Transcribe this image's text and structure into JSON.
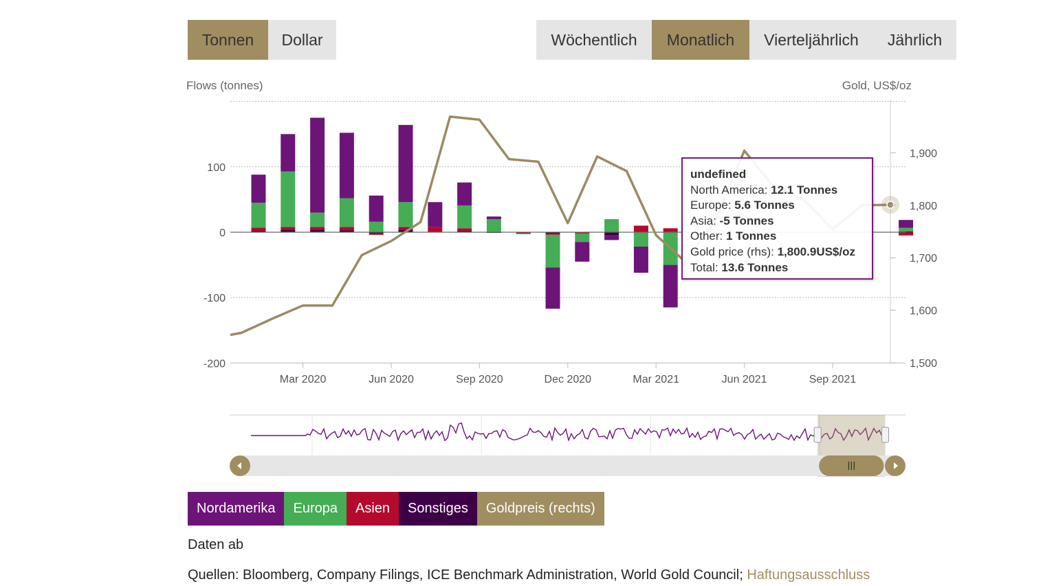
{
  "unit_toggle": [
    {
      "label": "Tonnen",
      "active": true
    },
    {
      "label": "Dollar",
      "active": false
    }
  ],
  "period_toggle": [
    {
      "label": "Wöchentlich",
      "active": false
    },
    {
      "label": "Monatlich",
      "active": true
    },
    {
      "label": "Vierteljährlich",
      "active": false
    },
    {
      "label": "Jährlich",
      "active": false
    }
  ],
  "colors": {
    "accent": "#a08e61",
    "north_america": "#6d1479",
    "europe": "#44ad55",
    "asia": "#b40a2c",
    "other": "#3d0047",
    "gold": "#9b8b64"
  },
  "chart_data": {
    "type": "bar",
    "stacked": true,
    "left_axis_title": "Flows (tonnes)",
    "right_axis_title": "Gold, US$/oz",
    "y_left_range": [
      -200,
      200
    ],
    "y_left_ticks": [
      "100",
      "0",
      "-100",
      "-200"
    ],
    "y_right_range": [
      1500,
      2000
    ],
    "y_right_ticks": [
      "1,900",
      "1,800",
      "1,700",
      "1,600",
      "1,500"
    ],
    "x_ticks": [
      "Mar 2020",
      "Jun 2020",
      "Sep 2020",
      "Dec 2020",
      "Mar 2021",
      "Jun 2021",
      "Sep 2021"
    ],
    "categories": [
      "2020-01",
      "2020-02",
      "2020-03",
      "2020-04",
      "2020-05",
      "2020-06",
      "2020-07",
      "2020-08",
      "2020-09",
      "2020-10",
      "2020-11",
      "2020-12",
      "2021-01",
      "2021-02",
      "2021-03",
      "2021-04",
      "2021-05",
      "2021-06",
      "2021-07",
      "2021-08",
      "2021-09",
      "2021-10",
      "2021-11"
    ],
    "series": [
      {
        "name": "Nordamerika",
        "values": [
          43,
          57,
          145,
          100,
          40,
          118,
          38,
          35,
          4,
          0,
          -63,
          -30,
          -7,
          -40,
          -65,
          0,
          0,
          0,
          0,
          0,
          0,
          0,
          12.1
        ]
      },
      {
        "name": "Europa",
        "values": [
          38,
          85,
          22,
          44,
          16,
          38,
          0,
          35,
          20,
          -1,
          -50,
          -13,
          20,
          -22,
          -50,
          0,
          0,
          0,
          0,
          0,
          0,
          0,
          5.6
        ]
      },
      {
        "name": "Asien",
        "values": [
          5,
          4,
          4,
          5,
          -2,
          4,
          8,
          4,
          0,
          -2,
          -2,
          -2,
          0,
          10,
          6,
          0,
          0,
          0,
          0,
          0,
          0,
          0,
          -5
        ]
      },
      {
        "name": "Sonstiges",
        "values": [
          2,
          4,
          4,
          3,
          -2,
          4,
          0,
          2,
          -1,
          0,
          -2,
          0,
          -5,
          0,
          0,
          0,
          0,
          0,
          0,
          0,
          0,
          0,
          1
        ]
      }
    ],
    "gold_series": {
      "name": "Goldpreis (rechts)",
      "values": [
        1557,
        1585,
        1609,
        1609,
        1705,
        1732,
        1768,
        1969,
        1963,
        1888,
        1883,
        1766,
        1893,
        1865,
        1743,
        1692,
        1770,
        1904,
        1835,
        1812,
        1754,
        1800,
        1800.9
      ]
    },
    "highlight_index": 22
  },
  "tooltip": {
    "title": "undefined",
    "rows": [
      {
        "label": "North America: ",
        "value": "12.1 Tonnes"
      },
      {
        "label": "Europe: ",
        "value": "5.6 Tonnes"
      },
      {
        "label": "Asia: ",
        "value": "-5 Tonnes"
      },
      {
        "label": "Other: ",
        "value": "1 Tonnes"
      },
      {
        "label": "Gold price (rhs): ",
        "value": "1,800.9US$/oz"
      },
      {
        "label": "Total: ",
        "value": "13.6 Tonnes"
      }
    ]
  },
  "navigator": {
    "left_arrow_icon": "arrow-left-icon",
    "right_arrow_icon": "arrow-right-icon",
    "grip_icon": "grip-icon",
    "selection_start": 0.87,
    "selection_end": 0.97
  },
  "legend": [
    {
      "label": "Nordamerika",
      "color": "#6d1479"
    },
    {
      "label": "Europa",
      "color": "#44ad55"
    },
    {
      "label": "Asien",
      "color": "#b40a2c"
    },
    {
      "label": "Sonstiges",
      "color": "#3d0047"
    },
    {
      "label": "Goldpreis (rechts)",
      "color": "#a08e61"
    }
  ],
  "footer": {
    "data_from": "Daten ab",
    "sources_prefix": "Quellen: Bloomberg, Company Filings, ICE Benchmark Administration, World Gold Council; ",
    "disclaimer_link": "Haftungsausschluss"
  }
}
